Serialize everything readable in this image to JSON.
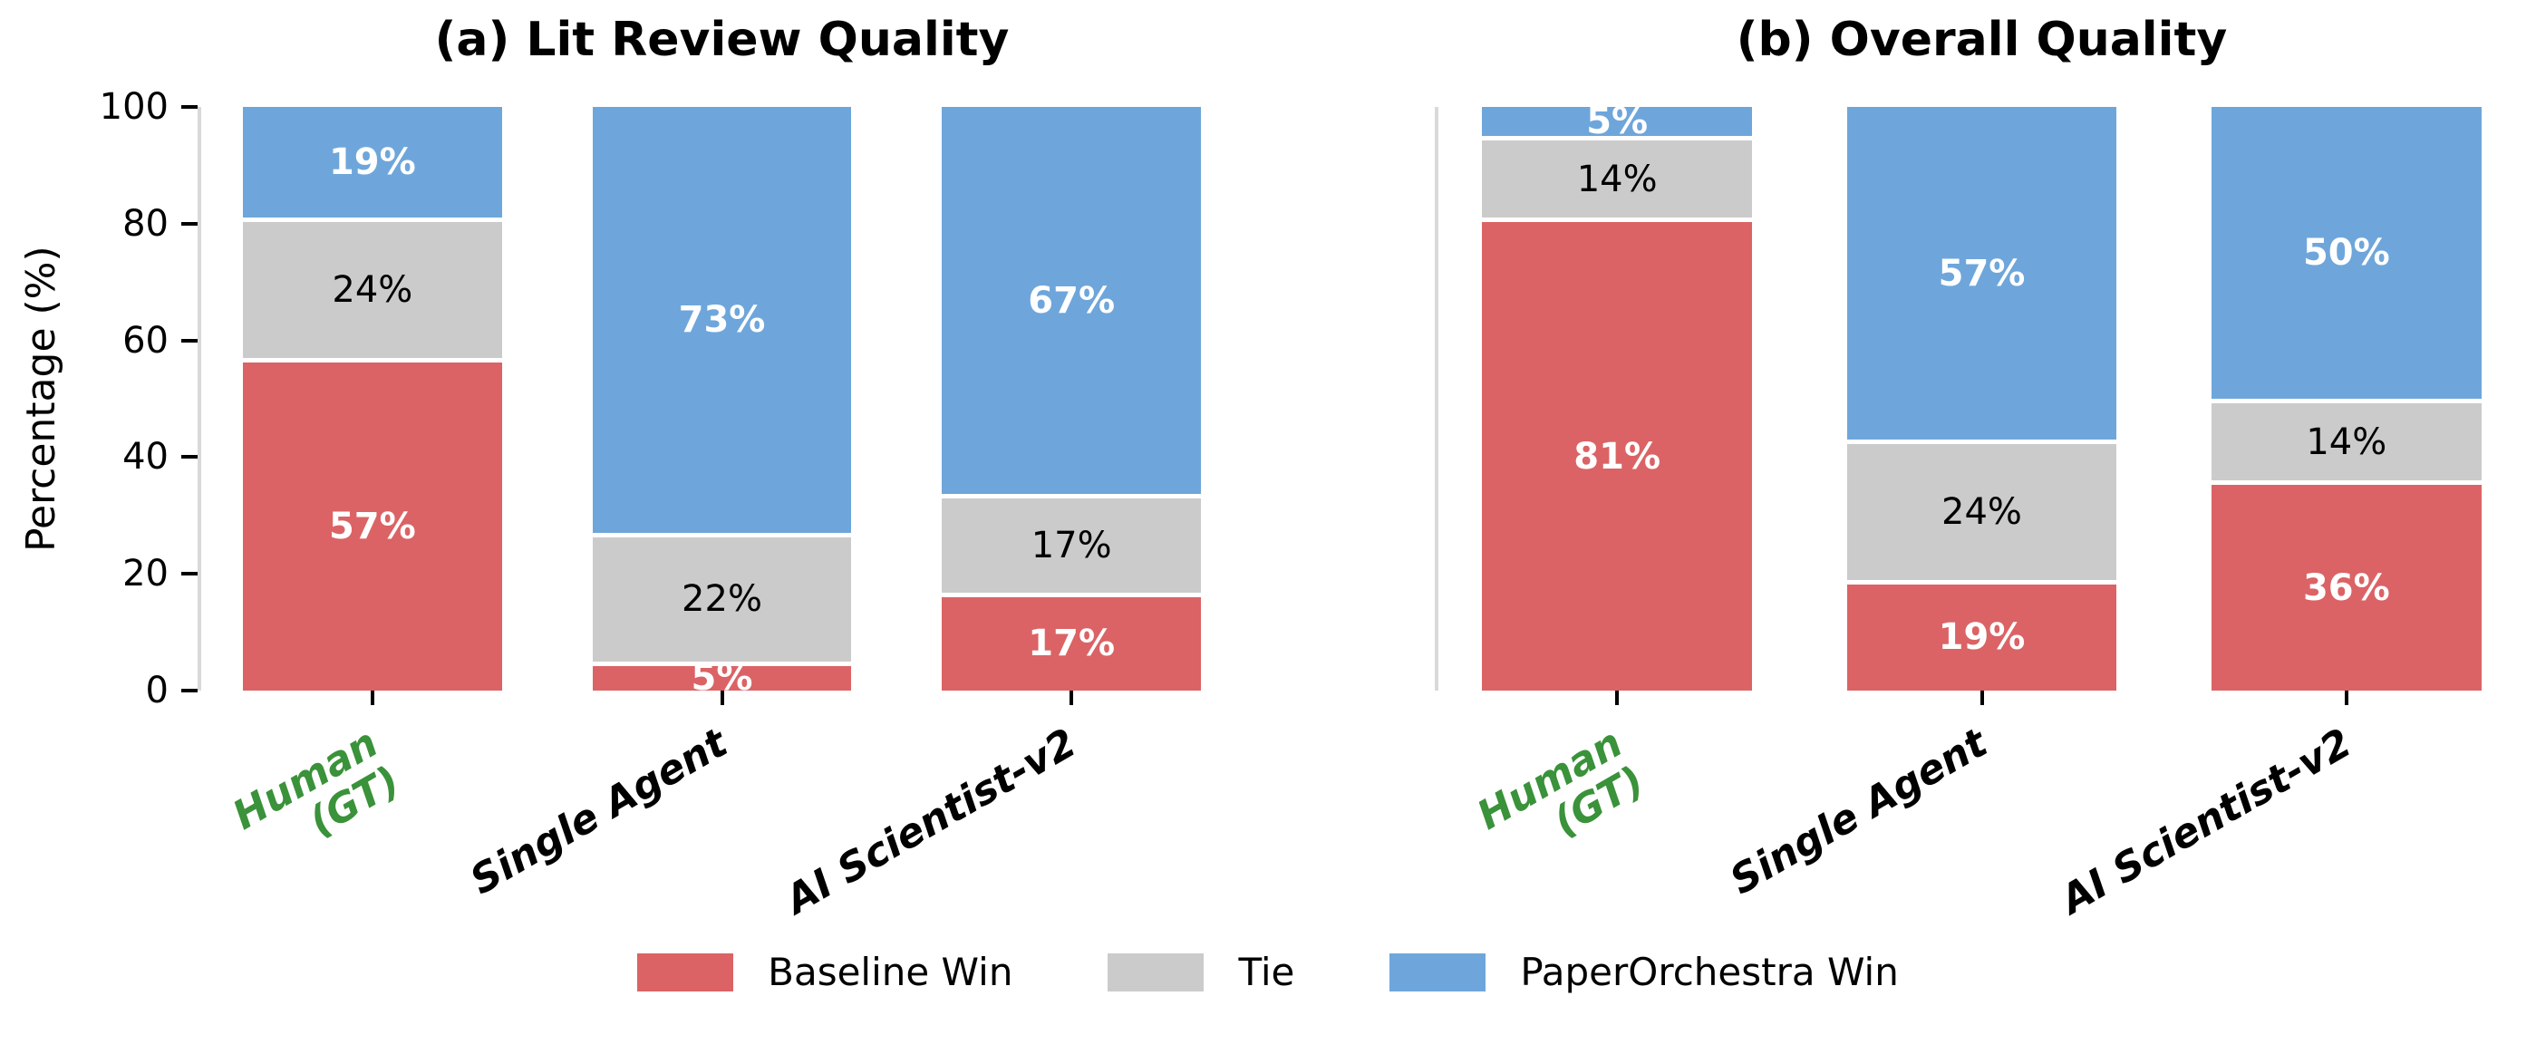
{
  "figure": {
    "ylabel": "Percentage (%)",
    "background": "#ffffff",
    "colors": {
      "baseline": "#db6365",
      "tie": "#cbcbcb",
      "paperorchestra": "#6ea6db",
      "highlight_category": "#3a923a",
      "category_text": "#000000",
      "axis_spine": "#d9d9d9",
      "tick": "#000000",
      "tick_label": "#000000",
      "segment_label_light": "#ffffff",
      "segment_label_dark": "#000000"
    },
    "legend": {
      "position": "bottom-center",
      "items": [
        {
          "label": "Baseline Win",
          "color_key": "baseline"
        },
        {
          "label": "Tie",
          "color_key": "tie"
        },
        {
          "label": "PaperOrchestra Win",
          "color_key": "paperorchestra"
        }
      ]
    }
  },
  "chart_data": [
    {
      "type": "bar",
      "stacked": true,
      "title": "(a) Lit Review Quality",
      "xlabel": "",
      "ylabel": "Percentage (%)",
      "ylim": [
        0,
        100
      ],
      "yticks": [
        0,
        20,
        40,
        60,
        80,
        100
      ],
      "show_ytick_labels": true,
      "grid": false,
      "value_suffix": "%",
      "categories": [
        {
          "lines": [
            "Human",
            "(GT)"
          ],
          "highlighted": true
        },
        {
          "lines": [
            "Single Agent"
          ],
          "highlighted": false
        },
        {
          "lines": [
            "AI Scientist-v2"
          ],
          "highlighted": false
        }
      ],
      "series": [
        {
          "name": "Baseline Win",
          "color_key": "baseline",
          "values": [
            57,
            5,
            17
          ],
          "label_color_key": "segment_label_light",
          "label_bold": true
        },
        {
          "name": "Tie",
          "color_key": "tie",
          "values": [
            24,
            22,
            17
          ],
          "label_color_key": "segment_label_dark",
          "label_bold": false
        },
        {
          "name": "PaperOrchestra Win",
          "color_key": "paperorchestra",
          "values": [
            19,
            73,
            67
          ],
          "label_color_key": "segment_label_light",
          "label_bold": true
        }
      ]
    },
    {
      "type": "bar",
      "stacked": true,
      "title": "(b) Overall Quality",
      "xlabel": "",
      "ylabel": "Percentage (%)",
      "ylim": [
        0,
        100
      ],
      "yticks": [
        0,
        20,
        40,
        60,
        80,
        100
      ],
      "show_ytick_labels": false,
      "grid": false,
      "value_suffix": "%",
      "categories": [
        {
          "lines": [
            "Human",
            "(GT)"
          ],
          "highlighted": true
        },
        {
          "lines": [
            "Single Agent"
          ],
          "highlighted": false
        },
        {
          "lines": [
            "AI Scientist-v2"
          ],
          "highlighted": false
        }
      ],
      "series": [
        {
          "name": "Baseline Win",
          "color_key": "baseline",
          "values": [
            81,
            19,
            36
          ],
          "label_color_key": "segment_label_light",
          "label_bold": true
        },
        {
          "name": "Tie",
          "color_key": "tie",
          "values": [
            14,
            24,
            14
          ],
          "label_color_key": "segment_label_dark",
          "label_bold": false
        },
        {
          "name": "PaperOrchestra Win",
          "color_key": "paperorchestra",
          "values": [
            5,
            57,
            50
          ],
          "label_color_key": "segment_label_light",
          "label_bold": true
        }
      ]
    }
  ]
}
